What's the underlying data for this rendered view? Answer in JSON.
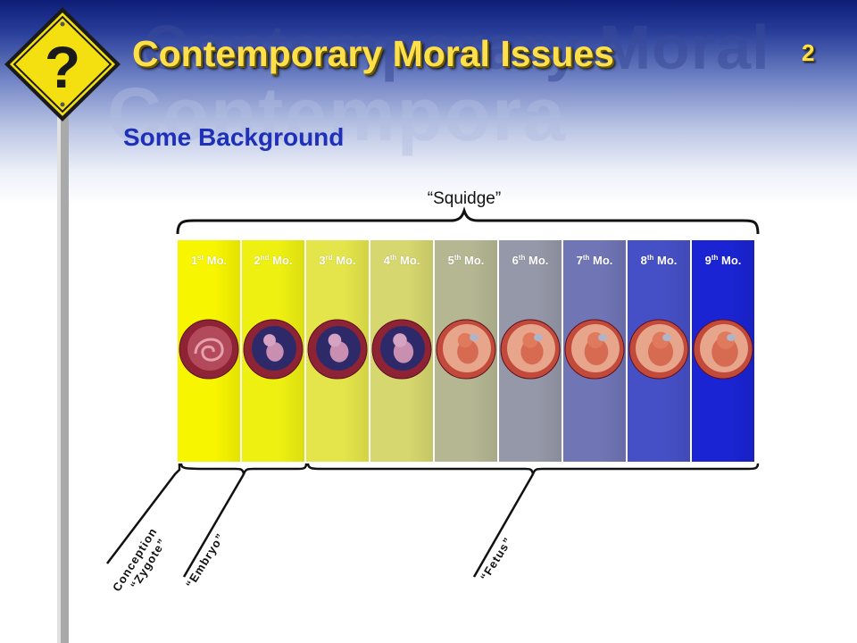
{
  "header": {
    "title": "Contemporary Moral Issues",
    "watermark_line1": "Contemporary Moral",
    "watermark_line2": "Contempora",
    "slide_number": "2",
    "sign_glyph": "?"
  },
  "slide": {
    "subtitle": "Some Background"
  },
  "diagram": {
    "top_label": "“Squidge”",
    "months": [
      {
        "num": "1",
        "sup": "st",
        "suffix": " Mo.",
        "color": "#f7f500"
      },
      {
        "num": "2",
        "sup": "nd",
        "suffix": " Mo.",
        "color": "#eef012"
      },
      {
        "num": "3",
        "sup": "rd",
        "suffix": " Mo.",
        "color": "#e4e54a"
      },
      {
        "num": "4",
        "sup": "th",
        "suffix": " Mo.",
        "color": "#d6d76e"
      },
      {
        "num": "5",
        "sup": "th",
        "suffix": " Mo.",
        "color": "#b5b793"
      },
      {
        "num": "6",
        "sup": "th",
        "suffix": " Mo.",
        "color": "#9598a8"
      },
      {
        "num": "7",
        "sup": "th",
        "suffix": " Mo.",
        "color": "#7075b6"
      },
      {
        "num": "8",
        "sup": "th",
        "suffix": " Mo.",
        "color": "#4650c6"
      },
      {
        "num": "9",
        "sup": "th",
        "suffix": " Mo.",
        "color": "#1a24d2"
      }
    ],
    "stage_labels": {
      "conception": "Conception",
      "zygote": "“Zygote”",
      "embryo": "“Embryo”",
      "fetus": "“Fetus”"
    }
  },
  "colors": {
    "title_yellow": "#ffe04a",
    "subtitle_blue": "#1e2fb8",
    "sign_yellow": "#f4e010"
  }
}
